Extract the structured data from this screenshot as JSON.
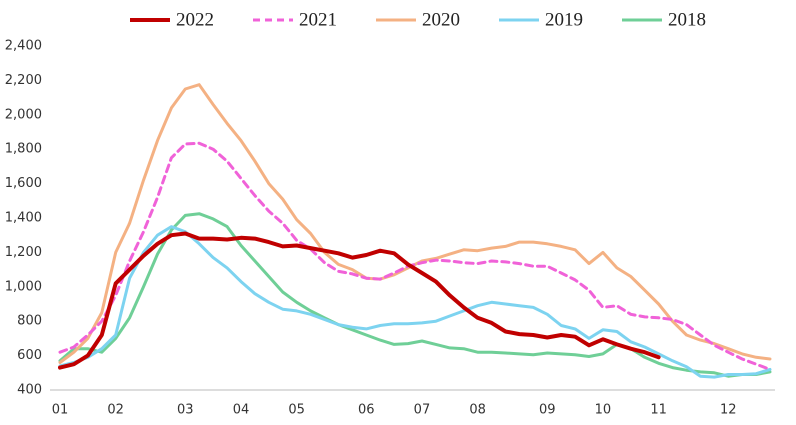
{
  "chart_data": {
    "type": "line",
    "categories": [
      "01",
      null,
      null,
      null,
      "02",
      null,
      null,
      null,
      null,
      "03",
      null,
      null,
      null,
      "04",
      null,
      null,
      null,
      "05",
      null,
      null,
      null,
      null,
      "06",
      null,
      null,
      null,
      "07",
      null,
      null,
      null,
      "08",
      null,
      null,
      null,
      null,
      "09",
      null,
      null,
      null,
      "10",
      null,
      null,
      null,
      "11",
      null,
      null,
      null,
      null,
      "12",
      null,
      null,
      null
    ],
    "series": [
      {
        "name": "2022",
        "color": "#c00000",
        "style": "solid",
        "width": 4,
        "values": [
          530,
          550,
          600,
          720,
          1020,
          1100,
          1180,
          1250,
          1300,
          1310,
          1280,
          1280,
          1275,
          1285,
          1280,
          1260,
          1235,
          1240,
          1225,
          1210,
          1195,
          1170,
          1185,
          1210,
          1195,
          1130,
          1080,
          1030,
          950,
          880,
          820,
          790,
          740,
          725,
          720,
          705,
          720,
          710,
          660,
          695,
          665,
          640,
          620,
          590,
          null,
          null,
          null,
          null,
          null,
          null,
          null,
          null
        ]
      },
      {
        "name": "2021",
        "color": "#f062d8",
        "style": "dashed",
        "width": 3,
        "values": [
          620,
          650,
          720,
          800,
          950,
          1150,
          1320,
          1520,
          1750,
          1830,
          1835,
          1800,
          1730,
          1630,
          1530,
          1440,
          1370,
          1270,
          1220,
          1140,
          1090,
          1075,
          1050,
          1045,
          1080,
          1120,
          1140,
          1155,
          1150,
          1140,
          1135,
          1150,
          1145,
          1135,
          1120,
          1120,
          1080,
          1040,
          980,
          880,
          890,
          840,
          825,
          820,
          810,
          780,
          720,
          660,
          620,
          580,
          550,
          520
        ]
      },
      {
        "name": "2020",
        "color": "#f4b183",
        "style": "solid",
        "width": 3,
        "values": [
          560,
          620,
          700,
          850,
          1200,
          1370,
          1620,
          1850,
          2040,
          2150,
          2175,
          2060,
          1950,
          1850,
          1730,
          1600,
          1510,
          1390,
          1310,
          1200,
          1130,
          1100,
          1050,
          1045,
          1070,
          1110,
          1150,
          1165,
          1190,
          1215,
          1210,
          1225,
          1235,
          1260,
          1260,
          1250,
          1235,
          1215,
          1135,
          1200,
          1110,
          1060,
          980,
          900,
          800,
          720,
          690,
          670,
          640,
          610,
          590,
          580
        ]
      },
      {
        "name": "2019",
        "color": "#7dd3f0",
        "style": "solid",
        "width": 3,
        "values": [
          540,
          560,
          590,
          640,
          720,
          1050,
          1200,
          1300,
          1350,
          1320,
          1250,
          1170,
          1110,
          1030,
          960,
          910,
          870,
          860,
          840,
          810,
          780,
          765,
          755,
          775,
          785,
          785,
          790,
          800,
          830,
          860,
          890,
          910,
          900,
          890,
          880,
          840,
          775,
          755,
          700,
          750,
          740,
          680,
          650,
          610,
          570,
          535,
          480,
          475,
          490,
          490,
          495,
          520
        ]
      },
      {
        "name": "2018",
        "color": "#6fcf97",
        "style": "solid",
        "width": 3,
        "values": [
          570,
          640,
          640,
          620,
          700,
          820,
          1000,
          1190,
          1330,
          1415,
          1425,
          1395,
          1350,
          1240,
          1150,
          1060,
          970,
          910,
          860,
          820,
          780,
          750,
          720,
          690,
          665,
          670,
          685,
          665,
          645,
          640,
          620,
          620,
          615,
          610,
          605,
          615,
          610,
          605,
          595,
          610,
          665,
          640,
          590,
          555,
          530,
          515,
          505,
          500,
          480,
          490,
          490,
          505
        ]
      }
    ],
    "ylim": [
      400,
      2400
    ],
    "yticks": [
      {
        "value": 400,
        "label": "400"
      },
      {
        "value": 600,
        "label": "600"
      },
      {
        "value": 800,
        "label": "800"
      },
      {
        "value": 1000,
        "label": "1,000"
      },
      {
        "value": 1200,
        "label": "1,200"
      },
      {
        "value": 1400,
        "label": "1,400"
      },
      {
        "value": 1600,
        "label": "1,600"
      },
      {
        "value": 1800,
        "label": "1,800"
      },
      {
        "value": 2000,
        "label": "2,000"
      },
      {
        "value": 2200,
        "label": "2,200"
      },
      {
        "value": 2400,
        "label": "2,400"
      }
    ],
    "grid": false,
    "legend": "top"
  }
}
